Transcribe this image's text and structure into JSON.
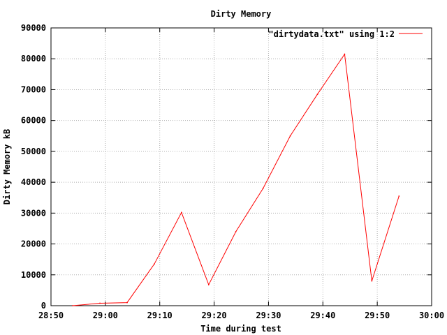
{
  "chart_data": {
    "type": "line",
    "title": "Dirty Memory",
    "xlabel": "Time during test",
    "ylabel": "Dirty Memory kB",
    "xlim": [
      "28:50",
      "30:00"
    ],
    "ylim": [
      0,
      90000
    ],
    "x_ticks": [
      "28:50",
      "29:00",
      "29:10",
      "29:20",
      "29:30",
      "29:40",
      "29:50",
      "30:00"
    ],
    "y_ticks": [
      "0",
      "10000",
      "20000",
      "30000",
      "40000",
      "50000",
      "60000",
      "70000",
      "80000",
      "90000"
    ],
    "grid": true,
    "legend_position": "top-right",
    "series": [
      {
        "name": "\"dirtydata.txt\" using 1:2",
        "color": "#ff0000",
        "points": [
          {
            "x": "28:54",
            "y": 0
          },
          {
            "x": "28:59",
            "y": 800
          },
          {
            "x": "29:04",
            "y": 1000
          },
          {
            "x": "29:09",
            "y": 13500
          },
          {
            "x": "29:14",
            "y": 30200
          },
          {
            "x": "29:19",
            "y": 6800
          },
          {
            "x": "29:24",
            "y": 24000
          },
          {
            "x": "29:29",
            "y": 38000
          },
          {
            "x": "29:34",
            "y": 55000
          },
          {
            "x": "29:39",
            "y": 68500
          },
          {
            "x": "29:44",
            "y": 81500
          },
          {
            "x": "29:49",
            "y": 8000
          },
          {
            "x": "29:54",
            "y": 35500
          }
        ]
      }
    ]
  }
}
